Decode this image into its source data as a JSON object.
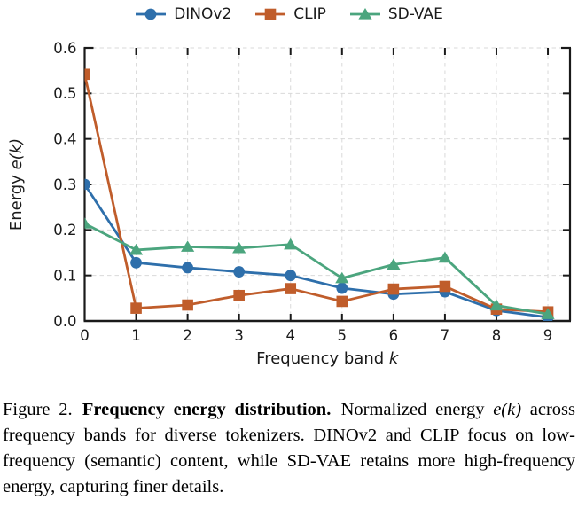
{
  "figure": {
    "caption": {
      "label": "Figure 2.",
      "title": "Frequency energy distribution.",
      "body_pre": "Normalized energy ",
      "math_term": "e(k)",
      "body_post": " across frequency bands for diverse tokenizers. DINOv2 and CLIP focus on low-frequency (semantic) content, while SD-VAE retains more high-frequency energy, capturing finer details."
    }
  },
  "chart_data": {
    "type": "line",
    "title": "",
    "xlabel": "Frequency band k",
    "ylabel": "Energy e(k)",
    "xlabel_parts": {
      "text": "Frequency band ",
      "italic": "k"
    },
    "ylabel_parts": {
      "text": "Energy ",
      "italic": "e(k)"
    },
    "x": [
      0,
      1,
      2,
      3,
      4,
      5,
      6,
      7,
      8,
      9
    ],
    "xtick_labels": [
      "0",
      "1",
      "2",
      "3",
      "4",
      "5",
      "6",
      "7",
      "8",
      "9"
    ],
    "ytick_labels": [
      "0.0",
      "0.1",
      "0.2",
      "0.3",
      "0.4",
      "0.5",
      "0.6"
    ],
    "yticks": [
      0,
      0.1,
      0.2,
      0.3,
      0.4,
      0.5,
      0.6
    ],
    "xlim": [
      0,
      9.43
    ],
    "ylim": [
      0,
      0.6
    ],
    "grid": true,
    "grid_style": "dashed",
    "legend_position": "top-center",
    "series": [
      {
        "name": "DINOv2",
        "marker": "circle",
        "color": "#2e6fab",
        "values": [
          0.3,
          0.128,
          0.117,
          0.108,
          0.1,
          0.072,
          0.059,
          0.064,
          0.023,
          0.008
        ]
      },
      {
        "name": "CLIP",
        "marker": "square",
        "color": "#c05d2b",
        "values": [
          0.542,
          0.028,
          0.035,
          0.056,
          0.071,
          0.043,
          0.07,
          0.076,
          0.026,
          0.02
        ]
      },
      {
        "name": "SD-VAE",
        "marker": "triangle",
        "color": "#4ba57e",
        "values": [
          0.214,
          0.156,
          0.163,
          0.16,
          0.168,
          0.094,
          0.124,
          0.139,
          0.034,
          0.015
        ]
      }
    ],
    "colors": {
      "grid": "#d9d9d9",
      "axis": "#1a1a1a",
      "tick_label": "#1a1a1a"
    }
  }
}
